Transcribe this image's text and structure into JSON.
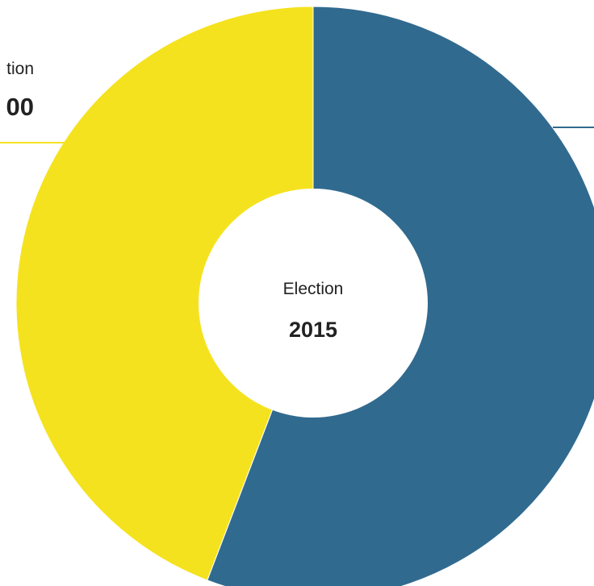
{
  "chart_data": {
    "type": "pie",
    "variant": "donut",
    "center": {
      "label": "Election",
      "value": "2015"
    },
    "slices": [
      {
        "value": 55.8,
        "color": "#316a8f"
      },
      {
        "value": 44.2,
        "color": "#f5e21e"
      }
    ],
    "callouts": [
      {
        "slice": 1,
        "label": "tion",
        "value": "00"
      }
    ],
    "legend": "none",
    "grid": false
  }
}
